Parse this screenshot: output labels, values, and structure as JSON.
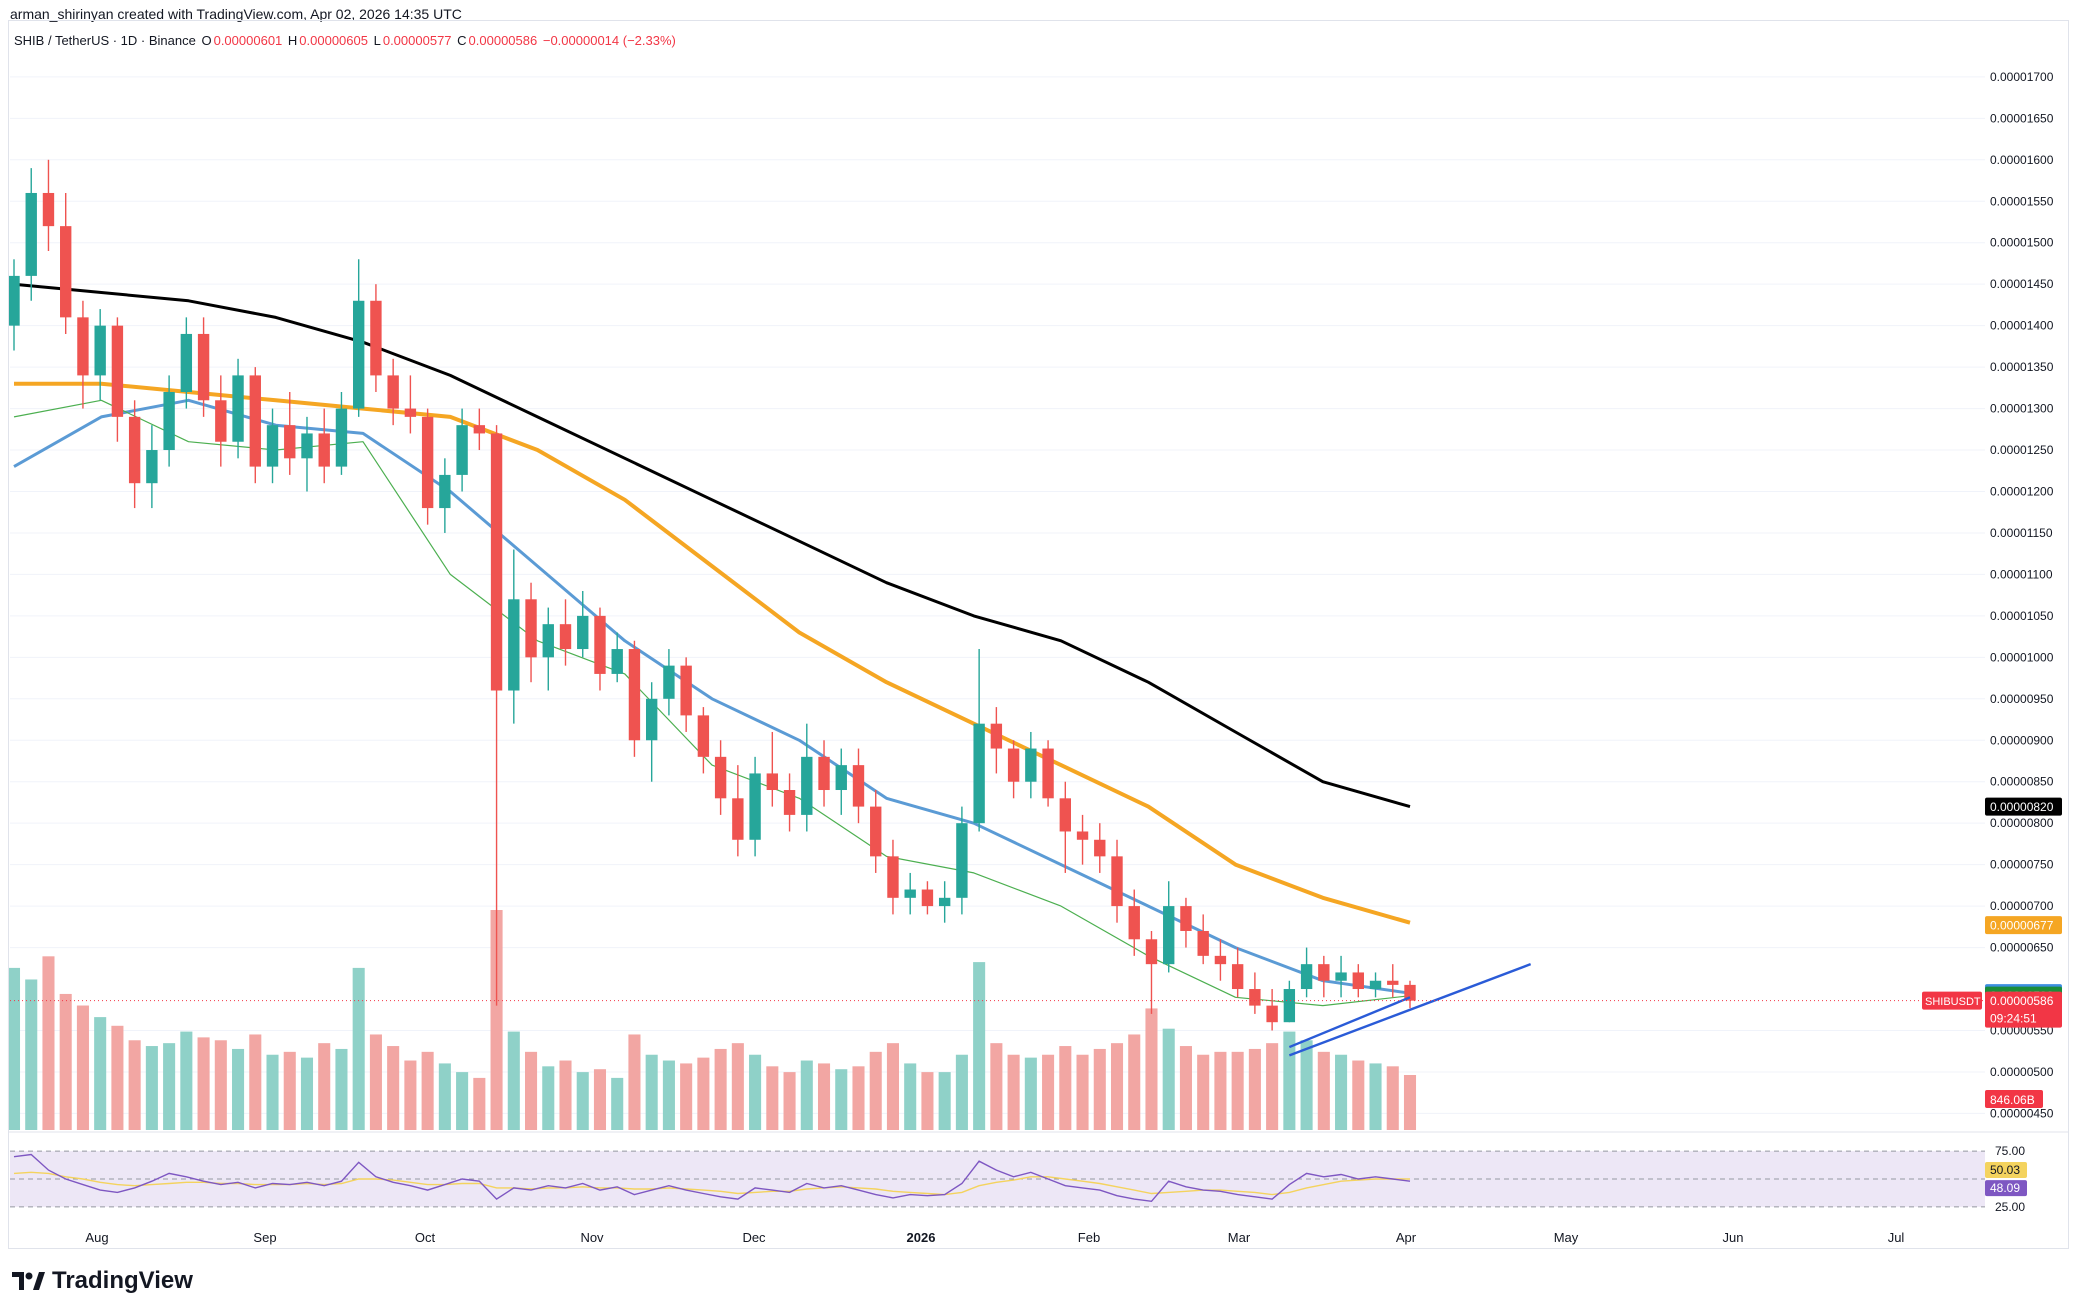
{
  "header": {
    "created_by": "arman_shirinyan created with TradingView.com, Apr 02, 2026 14:35 UTC"
  },
  "symbol": {
    "name": "SHIB / TetherUS · 1D · Binance",
    "open_label": "O",
    "open": "0.00000601",
    "high_label": "H",
    "high": "0.00000605",
    "low_label": "L",
    "low": "0.00000577",
    "close_label": "C",
    "close": "0.00000586",
    "change": "−0.00000014 (−2.33%)"
  },
  "branding": {
    "logo_text": "TradingView"
  },
  "colors": {
    "up": "#26a69a",
    "down": "#ef5350",
    "volume_up": "#8fd1c8",
    "volume_down": "#f2a6a3",
    "ma_fast": "#4caf50",
    "ma_50": "#5b9bd5",
    "ma_100": "#f5a623",
    "ma_200": "#000000",
    "trendline": "#2a5bd7",
    "rsi_line": "#7e57c2",
    "rsi_ma": "#f4d35e",
    "rsi_band": "#ede7f6"
  },
  "chart_data": {
    "type": "candlestick",
    "interval": "1D",
    "x_tick_labels": [
      "Aug",
      "Sep",
      "Oct",
      "Nov",
      "Dec",
      "2026",
      "Feb",
      "Mar",
      "Apr",
      "May",
      "Jun",
      "Jul"
    ],
    "y_tick_labels": [
      "0.00001700",
      "0.00001650",
      "0.00001600",
      "0.00001550",
      "0.00001500",
      "0.00001450",
      "0.00001400",
      "0.00001350",
      "0.00001300",
      "0.00001250",
      "0.00001200",
      "0.00001150",
      "0.00001100",
      "0.00001050",
      "0.00001000",
      "0.00000950",
      "0.00000900",
      "0.00000850",
      "0.00000800",
      "0.00000750",
      "0.00000700",
      "0.00000650",
      "0.00000550",
      "0.00000500",
      "0.00000450"
    ],
    "ylim": [
      4.3e-06,
      1.73e-05
    ],
    "price_scale": "right",
    "candles": [
      {
        "o": 14.0,
        "h": 14.8,
        "l": 13.7,
        "c": 14.6
      },
      {
        "o": 14.6,
        "h": 15.9,
        "l": 14.3,
        "c": 15.6
      },
      {
        "o": 15.6,
        "h": 16.0,
        "l": 14.9,
        "c": 15.2
      },
      {
        "o": 15.2,
        "h": 15.6,
        "l": 13.9,
        "c": 14.1
      },
      {
        "o": 14.1,
        "h": 14.3,
        "l": 13.0,
        "c": 13.4
      },
      {
        "o": 13.4,
        "h": 14.2,
        "l": 13.1,
        "c": 14.0
      },
      {
        "o": 14.0,
        "h": 14.1,
        "l": 12.6,
        "c": 12.9
      },
      {
        "o": 12.9,
        "h": 13.1,
        "l": 11.8,
        "c": 12.1
      },
      {
        "o": 12.1,
        "h": 12.8,
        "l": 11.8,
        "c": 12.5
      },
      {
        "o": 12.5,
        "h": 13.4,
        "l": 12.3,
        "c": 13.2
      },
      {
        "o": 13.2,
        "h": 14.1,
        "l": 13.0,
        "c": 13.9
      },
      {
        "o": 13.9,
        "h": 14.1,
        "l": 12.9,
        "c": 13.1
      },
      {
        "o": 13.1,
        "h": 13.4,
        "l": 12.3,
        "c": 12.6
      },
      {
        "o": 12.6,
        "h": 13.6,
        "l": 12.4,
        "c": 13.4
      },
      {
        "o": 13.4,
        "h": 13.5,
        "l": 12.1,
        "c": 12.3
      },
      {
        "o": 12.3,
        "h": 13.0,
        "l": 12.1,
        "c": 12.8
      },
      {
        "o": 12.8,
        "h": 13.2,
        "l": 12.2,
        "c": 12.4
      },
      {
        "o": 12.4,
        "h": 12.9,
        "l": 12.0,
        "c": 12.7
      },
      {
        "o": 12.7,
        "h": 13.0,
        "l": 12.1,
        "c": 12.3
      },
      {
        "o": 12.3,
        "h": 13.2,
        "l": 12.2,
        "c": 13.0
      },
      {
        "o": 13.0,
        "h": 14.8,
        "l": 12.9,
        "c": 14.3
      },
      {
        "o": 14.3,
        "h": 14.5,
        "l": 13.2,
        "c": 13.4
      },
      {
        "o": 13.4,
        "h": 13.6,
        "l": 12.8,
        "c": 13.0
      },
      {
        "o": 13.0,
        "h": 13.4,
        "l": 12.7,
        "c": 12.9
      },
      {
        "o": 12.9,
        "h": 13.0,
        "l": 11.6,
        "c": 11.8
      },
      {
        "o": 11.8,
        "h": 12.4,
        "l": 11.5,
        "c": 12.2
      },
      {
        "o": 12.2,
        "h": 13.0,
        "l": 12.0,
        "c": 12.8
      },
      {
        "o": 12.8,
        "h": 13.0,
        "l": 12.5,
        "c": 12.7
      },
      {
        "o": 12.7,
        "h": 12.8,
        "l": 5.8,
        "c": 9.6
      },
      {
        "o": 9.6,
        "h": 11.3,
        "l": 9.2,
        "c": 10.7
      },
      {
        "o": 10.7,
        "h": 10.9,
        "l": 9.7,
        "c": 10.0
      },
      {
        "o": 10.0,
        "h": 10.6,
        "l": 9.6,
        "c": 10.4
      },
      {
        "o": 10.4,
        "h": 10.7,
        "l": 9.9,
        "c": 10.1
      },
      {
        "o": 10.1,
        "h": 10.8,
        "l": 10.0,
        "c": 10.5
      },
      {
        "o": 10.5,
        "h": 10.6,
        "l": 9.6,
        "c": 9.8
      },
      {
        "o": 9.8,
        "h": 10.3,
        "l": 9.7,
        "c": 10.1
      },
      {
        "o": 10.1,
        "h": 10.2,
        "l": 8.8,
        "c": 9.0
      },
      {
        "o": 9.0,
        "h": 9.7,
        "l": 8.5,
        "c": 9.5
      },
      {
        "o": 9.5,
        "h": 10.1,
        "l": 9.3,
        "c": 9.9
      },
      {
        "o": 9.9,
        "h": 10.0,
        "l": 9.1,
        "c": 9.3
      },
      {
        "o": 9.3,
        "h": 9.4,
        "l": 8.6,
        "c": 8.8
      },
      {
        "o": 8.8,
        "h": 9.0,
        "l": 8.1,
        "c": 8.3
      },
      {
        "o": 8.3,
        "h": 8.7,
        "l": 7.6,
        "c": 7.8
      },
      {
        "o": 7.8,
        "h": 8.8,
        "l": 7.6,
        "c": 8.6
      },
      {
        "o": 8.6,
        "h": 9.1,
        "l": 8.2,
        "c": 8.4
      },
      {
        "o": 8.4,
        "h": 8.6,
        "l": 7.9,
        "c": 8.1
      },
      {
        "o": 8.1,
        "h": 9.2,
        "l": 7.9,
        "c": 8.8
      },
      {
        "o": 8.8,
        "h": 9.0,
        "l": 8.2,
        "c": 8.4
      },
      {
        "o": 8.4,
        "h": 8.9,
        "l": 8.1,
        "c": 8.7
      },
      {
        "o": 8.7,
        "h": 8.9,
        "l": 8.0,
        "c": 8.2
      },
      {
        "o": 8.2,
        "h": 8.4,
        "l": 7.4,
        "c": 7.6
      },
      {
        "o": 7.6,
        "h": 7.8,
        "l": 6.9,
        "c": 7.1
      },
      {
        "o": 7.1,
        "h": 7.4,
        "l": 6.9,
        "c": 7.2
      },
      {
        "o": 7.2,
        "h": 7.3,
        "l": 6.9,
        "c": 7.0
      },
      {
        "o": 7.0,
        "h": 7.3,
        "l": 6.8,
        "c": 7.1
      },
      {
        "o": 7.1,
        "h": 8.2,
        "l": 6.9,
        "c": 8.0
      },
      {
        "o": 8.0,
        "h": 10.1,
        "l": 7.9,
        "c": 9.2
      },
      {
        "o": 9.2,
        "h": 9.4,
        "l": 8.6,
        "c": 8.9
      },
      {
        "o": 8.9,
        "h": 9.0,
        "l": 8.3,
        "c": 8.5
      },
      {
        "o": 8.5,
        "h": 9.1,
        "l": 8.3,
        "c": 8.9
      },
      {
        "o": 8.9,
        "h": 9.0,
        "l": 8.2,
        "c": 8.3
      },
      {
        "o": 8.3,
        "h": 8.5,
        "l": 7.4,
        "c": 7.9
      },
      {
        "o": 7.9,
        "h": 8.1,
        "l": 7.5,
        "c": 7.8
      },
      {
        "o": 7.8,
        "h": 8.0,
        "l": 7.4,
        "c": 7.6
      },
      {
        "o": 7.6,
        "h": 7.8,
        "l": 6.8,
        "c": 7.0
      },
      {
        "o": 7.0,
        "h": 7.2,
        "l": 6.4,
        "c": 6.6
      },
      {
        "o": 6.6,
        "h": 6.7,
        "l": 5.7,
        "c": 6.3
      },
      {
        "o": 6.3,
        "h": 7.3,
        "l": 6.2,
        "c": 7.0
      },
      {
        "o": 7.0,
        "h": 7.1,
        "l": 6.5,
        "c": 6.7
      },
      {
        "o": 6.7,
        "h": 6.9,
        "l": 6.3,
        "c": 6.4
      },
      {
        "o": 6.4,
        "h": 6.6,
        "l": 6.1,
        "c": 6.3
      },
      {
        "o": 6.3,
        "h": 6.5,
        "l": 5.9,
        "c": 6.0
      },
      {
        "o": 6.0,
        "h": 6.2,
        "l": 5.7,
        "c": 5.8
      },
      {
        "o": 5.8,
        "h": 6.0,
        "l": 5.5,
        "c": 5.6
      },
      {
        "o": 5.6,
        "h": 6.1,
        "l": 5.6,
        "c": 6.0
      },
      {
        "o": 6.0,
        "h": 6.5,
        "l": 5.9,
        "c": 6.3
      },
      {
        "o": 6.3,
        "h": 6.4,
        "l": 5.9,
        "c": 6.1
      },
      {
        "o": 6.1,
        "h": 6.4,
        "l": 5.9,
        "c": 6.2
      },
      {
        "o": 6.2,
        "h": 6.3,
        "l": 5.9,
        "c": 6.0
      },
      {
        "o": 6.0,
        "h": 6.2,
        "l": 5.9,
        "c": 6.1
      },
      {
        "o": 6.1,
        "h": 6.3,
        "l": 5.9,
        "c": 6.05
      },
      {
        "o": 6.05,
        "h": 6.1,
        "l": 5.77,
        "c": 5.86
      }
    ],
    "volume": [
      560,
      520,
      600,
      470,
      430,
      390,
      360,
      310,
      290,
      300,
      340,
      320,
      310,
      280,
      330,
      260,
      270,
      250,
      300,
      280,
      560,
      330,
      290,
      240,
      270,
      230,
      200,
      180,
      760,
      340,
      270,
      220,
      240,
      200,
      210,
      180,
      330,
      260,
      240,
      230,
      250,
      280,
      300,
      260,
      220,
      200,
      240,
      230,
      210,
      220,
      270,
      300,
      230,
      200,
      200,
      260,
      580,
      300,
      260,
      250,
      260,
      290,
      260,
      280,
      300,
      330,
      420,
      350,
      290,
      260,
      270,
      270,
      280,
      300,
      340,
      310,
      270,
      260,
      240,
      230,
      220,
      190
    ],
    "moving_averages": {
      "ma_200": {
        "last": "0.00000820",
        "values": [
          14.5,
          14.4,
          14.3,
          14.1,
          13.8,
          13.4,
          12.9,
          12.4,
          11.9,
          11.4,
          10.9,
          10.5,
          10.2,
          9.7,
          9.1,
          8.5,
          8.2
        ]
      },
      "ma_100": {
        "last": "0.00000677",
        "values": [
          13.3,
          13.3,
          13.2,
          13.1,
          13.0,
          12.9,
          12.5,
          11.9,
          11.1,
          10.3,
          9.7,
          9.2,
          8.7,
          8.2,
          7.5,
          7.1,
          6.8
        ]
      },
      "ma_50": {
        "last": "0.00000595",
        "values": [
          12.3,
          12.9,
          13.1,
          12.8,
          12.7,
          12.0,
          11.1,
          10.2,
          9.5,
          9.0,
          8.3,
          8.0,
          7.5,
          7.0,
          6.5,
          6.1,
          5.95
        ]
      },
      "ma_fast": {
        "last": "0.00000592",
        "values": [
          12.9,
          13.1,
          12.6,
          12.5,
          12.6,
          11.0,
          10.2,
          9.8,
          8.7,
          8.3,
          7.6,
          7.4,
          7.0,
          6.4,
          5.9,
          5.8,
          5.92
        ]
      }
    },
    "price_labels": {
      "ma_200": "0.00000820",
      "ma_100": "0.00000677",
      "ma_50": "0.00000595",
      "ma_fast": "0.00000592",
      "last_price": "0.00000586",
      "symbol_tag": "SHIBUSDT",
      "countdown": "09:24:51",
      "volume_value": "846.06B"
    },
    "rsi": {
      "tick_labels": [
        "75.00",
        "25.00"
      ],
      "value_label": "48.09",
      "ma_value_label": "50.03",
      "values": [
        70,
        72,
        58,
        50,
        45,
        40,
        38,
        42,
        48,
        55,
        52,
        48,
        45,
        47,
        42,
        46,
        45,
        47,
        44,
        48,
        65,
        52,
        47,
        44,
        40,
        45,
        50,
        48,
        32,
        42,
        40,
        44,
        42,
        46,
        40,
        43,
        36,
        40,
        44,
        40,
        37,
        34,
        32,
        42,
        40,
        38,
        46,
        42,
        44,
        40,
        36,
        33,
        36,
        35,
        36,
        46,
        66,
        58,
        52,
        56,
        50,
        44,
        42,
        40,
        35,
        32,
        30,
        48,
        43,
        40,
        39,
        36,
        34,
        32,
        45,
        55,
        52,
        54,
        50,
        52,
        50,
        48
      ],
      "ma_values": [
        55,
        56,
        55,
        52,
        50,
        47,
        45,
        44,
        45,
        46,
        47,
        47,
        46,
        46,
        45,
        45,
        45,
        46,
        45,
        46,
        50,
        50,
        49,
        47,
        45,
        45,
        46,
        46,
        42,
        42,
        41,
        42,
        42,
        43,
        42,
        42,
        41,
        41,
        42,
        41,
        40,
        39,
        37,
        38,
        39,
        39,
        41,
        42,
        43,
        42,
        41,
        39,
        38,
        37,
        36,
        38,
        44,
        47,
        49,
        52,
        52,
        50,
        48,
        46,
        43,
        40,
        37,
        38,
        39,
        40,
        40,
        39,
        38,
        36,
        38,
        42,
        45,
        48,
        49,
        50,
        50,
        50
      ]
    },
    "annotations": [
      {
        "type": "trendline",
        "from": {
          "candle": 74,
          "price": 5.2
        },
        "to": {
          "candle": 88,
          "price": 6.3
        }
      },
      {
        "type": "trendline",
        "from": {
          "candle": 74,
          "price": 5.3
        },
        "to": {
          "candle": 81,
          "price": 5.9
        }
      }
    ]
  }
}
